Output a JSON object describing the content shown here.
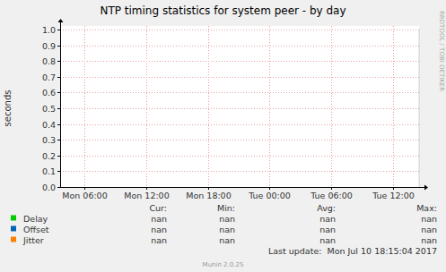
{
  "chart_data": {
    "type": "line",
    "title": "NTP timing statistics for system peer - by day",
    "y_label": "seconds",
    "x": [],
    "xlim": [
      3.65,
      38.52
    ],
    "xticks": [
      {
        "value": 6,
        "label": "Mon 06:00"
      },
      {
        "value": 12,
        "label": "Mon 12:00"
      },
      {
        "value": 18,
        "label": "Mon 18:00"
      },
      {
        "value": 24,
        "label": "Tue 00:00"
      },
      {
        "value": 30,
        "label": "Tue 06:00"
      },
      {
        "value": 36,
        "label": "Tue 12:00"
      }
    ],
    "ylim": [
      0,
      1
    ],
    "yticks": [
      {
        "value": 0,
        "label": "0.0"
      },
      0.1,
      0.2,
      0.3,
      0.4,
      0.5,
      0.6,
      0.7,
      0.8,
      0.9,
      {
        "value": 1,
        "label": "1.0"
      }
    ],
    "grid": true,
    "legend": "bottom",
    "legend_columns": [
      "Cur:",
      "Min:",
      "Avg:",
      "Max:"
    ],
    "series": [
      {
        "name": "Delay",
        "color": "#00cc00",
        "values": [],
        "stats": [
          "nan",
          "nan",
          "nan",
          "nan"
        ]
      },
      {
        "name": "Offset",
        "color": "#0066b3",
        "values": [],
        "stats": [
          "nan",
          "nan",
          "nan",
          "nan"
        ]
      },
      {
        "name": "Jitter",
        "color": "#ff8000",
        "values": [],
        "stats": [
          "nan",
          "nan",
          "nan",
          "nan"
        ]
      }
    ],
    "last_update": "Last update:  Mon Jul 10 18:15:04 2017",
    "generator": "Munin 2.0.25",
    "watermark": "RRDTOOL / TOBI OETIKER"
  }
}
